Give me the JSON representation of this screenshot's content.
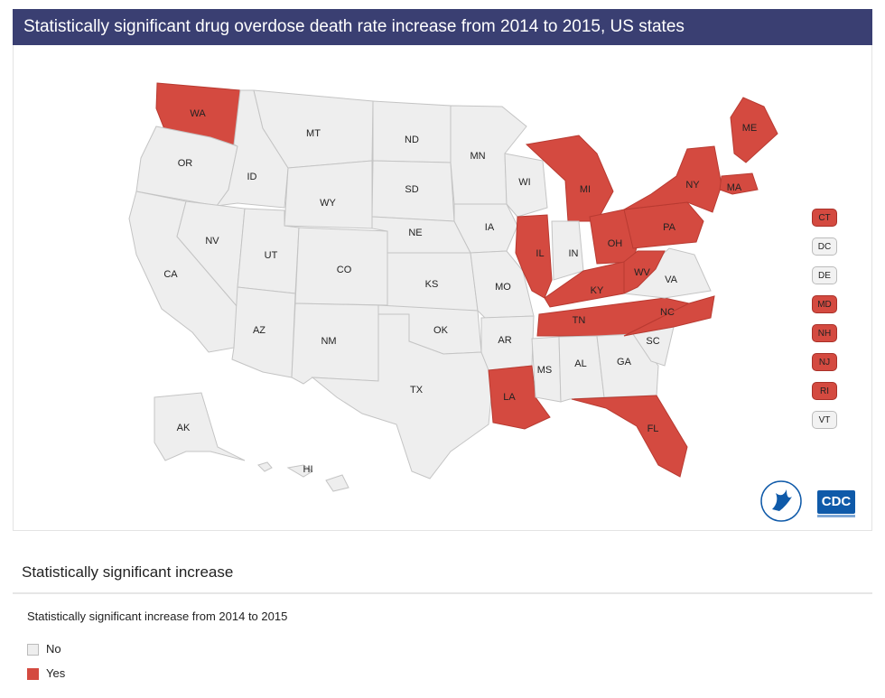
{
  "title": "Statistically significant drug overdose death rate increase from 2014 to 2015, US states",
  "colors": {
    "yes": "#d44a40",
    "no": "#eeeeee",
    "border": "#c4c4c4",
    "title_bg": "#3a3f72"
  },
  "states": [
    {
      "code": "WA",
      "value": "Yes"
    },
    {
      "code": "OR",
      "value": "No"
    },
    {
      "code": "CA",
      "value": "No"
    },
    {
      "code": "ID",
      "value": "No"
    },
    {
      "code": "NV",
      "value": "No"
    },
    {
      "code": "MT",
      "value": "No"
    },
    {
      "code": "WY",
      "value": "No"
    },
    {
      "code": "UT",
      "value": "No"
    },
    {
      "code": "AZ",
      "value": "No"
    },
    {
      "code": "CO",
      "value": "No"
    },
    {
      "code": "NM",
      "value": "No"
    },
    {
      "code": "ND",
      "value": "No"
    },
    {
      "code": "SD",
      "value": "No"
    },
    {
      "code": "NE",
      "value": "No"
    },
    {
      "code": "KS",
      "value": "No"
    },
    {
      "code": "OK",
      "value": "No"
    },
    {
      "code": "TX",
      "value": "No"
    },
    {
      "code": "MN",
      "value": "No"
    },
    {
      "code": "IA",
      "value": "No"
    },
    {
      "code": "MO",
      "value": "No"
    },
    {
      "code": "AR",
      "value": "No"
    },
    {
      "code": "LA",
      "value": "Yes"
    },
    {
      "code": "WI",
      "value": "No"
    },
    {
      "code": "IL",
      "value": "Yes"
    },
    {
      "code": "MI",
      "value": "Yes"
    },
    {
      "code": "IN",
      "value": "No"
    },
    {
      "code": "OH",
      "value": "Yes"
    },
    {
      "code": "KY",
      "value": "Yes"
    },
    {
      "code": "TN",
      "value": "Yes"
    },
    {
      "code": "MS",
      "value": "No"
    },
    {
      "code": "AL",
      "value": "No"
    },
    {
      "code": "GA",
      "value": "No"
    },
    {
      "code": "FL",
      "value": "Yes"
    },
    {
      "code": "SC",
      "value": "No"
    },
    {
      "code": "NC",
      "value": "Yes"
    },
    {
      "code": "VA",
      "value": "No"
    },
    {
      "code": "WV",
      "value": "Yes"
    },
    {
      "code": "PA",
      "value": "Yes"
    },
    {
      "code": "NY",
      "value": "Yes"
    },
    {
      "code": "MA",
      "value": "Yes"
    },
    {
      "code": "ME",
      "value": "Yes"
    },
    {
      "code": "AK",
      "value": "No"
    },
    {
      "code": "HI",
      "value": "No"
    }
  ],
  "small_states": [
    {
      "code": "CT",
      "value": "Yes"
    },
    {
      "code": "DC",
      "value": "No"
    },
    {
      "code": "DE",
      "value": "No"
    },
    {
      "code": "MD",
      "value": "Yes"
    },
    {
      "code": "NH",
      "value": "Yes"
    },
    {
      "code": "NJ",
      "value": "Yes"
    },
    {
      "code": "RI",
      "value": "Yes"
    },
    {
      "code": "VT",
      "value": "No"
    }
  ],
  "logo_text": "CDC",
  "legend": {
    "heading": "Statistically significant increase",
    "subtitle": "Statistically significant increase from 2014 to 2015",
    "items": [
      {
        "label": "No",
        "value": "No"
      },
      {
        "label": "Yes",
        "value": "Yes"
      }
    ]
  }
}
